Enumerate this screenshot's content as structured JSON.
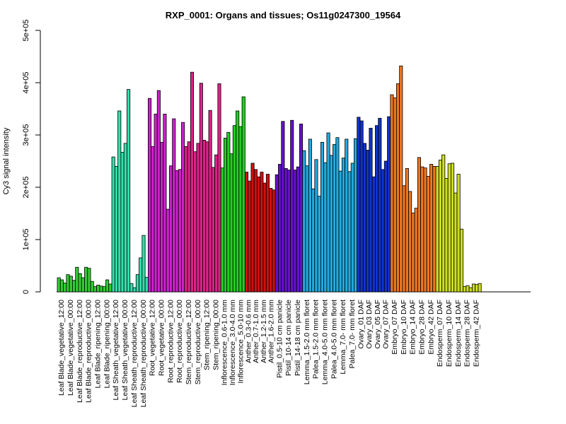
{
  "chart_data": {
    "type": "bar",
    "title": "RXP_0001: Organs and tissues; Os11g0247300_19564",
    "ylabel": "Cy3 signal intensity",
    "xlabel": "",
    "ylim": [
      0,
      500000
    ],
    "yticks": [
      0,
      100000,
      200000,
      300000,
      400000,
      500000
    ],
    "ytick_labels": [
      "0",
      "1e+05",
      "2e+05",
      "3e+05",
      "4e+05",
      "5e+05"
    ],
    "grid": false,
    "legend": "none",
    "groups": [
      {
        "labels": [
          "Leaf Blade_vegetative_12:00",
          "Leaf Blade_vegetative_00:00"
        ],
        "color": "#33cc33",
        "values": [
          27000,
          23000,
          17000,
          33000,
          30000,
          22000
        ]
      },
      {
        "labels": [
          "Leaf Blade_reproductive_12:00",
          "Leaf Blade_reproductive_00:00"
        ],
        "color": "#33cc33",
        "values": [
          47000,
          35000,
          27000,
          47000,
          45000,
          20000
        ]
      },
      {
        "labels": [
          "Leaf Blade_ripening_12:00",
          "Leaf Blade_ripening_00:00"
        ],
        "color": "#33cc33",
        "values": [
          10000,
          13000,
          11000,
          10000,
          23000,
          15000
        ]
      },
      {
        "labels": [
          "Leaf Sheath_vegetative_12:00",
          "Leaf Sheath_vegetative_00:00"
        ],
        "color": "#33ddaa",
        "values": [
          258000,
          240000,
          346000,
          267000,
          284000,
          387000
        ]
      },
      {
        "labels": [
          "Leaf Sheath_reproductive_12:00",
          "Leaf Sheath_reproductive_00:00"
        ],
        "color": "#33ddaa",
        "values": [
          16000,
          8000,
          33000,
          65000,
          108000,
          28000
        ]
      },
      {
        "labels": [
          "Root_vegetative_12:00",
          "Root_vegetative_00:00"
        ],
        "color": "#cc22cc",
        "values": [
          370000,
          278000,
          340000,
          385000,
          286000,
          340000
        ]
      },
      {
        "labels": [
          "Root_reproductive_12:00",
          "Root_reproductive_00:00"
        ],
        "color": "#cc22cc",
        "values": [
          158000,
          241000,
          331000,
          232000,
          234000,
          324000
        ]
      },
      {
        "labels": [
          "Stem_reproductive_12:00",
          "Stem_reproductive_00:00"
        ],
        "color": "#dd2288",
        "values": [
          278000,
          287000,
          420000,
          268000,
          284000,
          399000
        ]
      },
      {
        "labels": [
          "Stem_ripening_12:00",
          "Stem_ripening_00:00"
        ],
        "color": "#dd2288",
        "values": [
          290000,
          287000,
          347000,
          238000,
          262000,
          398000
        ]
      },
      {
        "labels": [
          "Inflorescence_0.6-1.0 mm",
          "Inflorescence_3.0-4.0 mm",
          "Inflorescence_5.0-10 mm"
        ],
        "color": "#22cc22",
        "values": [
          237000,
          294000,
          305000,
          264000,
          318000,
          346000,
          316000,
          373000
        ]
      },
      {
        "labels": [
          "Anther_0.3-0.6 mm",
          "Anther_0.7-1.0 mm",
          "Anther_1.2-1.5 mm",
          "Anther_1.6-2.0 mm"
        ],
        "color": "#cc1111",
        "values": [
          229000,
          212000,
          246000,
          234000,
          220000,
          229000,
          208000,
          225000,
          198000,
          195000
        ]
      },
      {
        "labels": [
          "Pistil_0.5-10 cm panicle",
          "Pistil_10-14 cm panicle",
          "Pistil_14-18 cm panicle"
        ],
        "color": "#6611cc",
        "values": [
          224000,
          244000,
          326000,
          236000,
          233000,
          328000,
          233000,
          239000,
          321000
        ]
      },
      {
        "labels": [
          "Lemma_1.5-2.0 mm floret",
          "Palea_1.5-2.0 mm floret",
          "Lemma_4.0-5.0 mm floret",
          "Palea_4.0-5.0 mm floret",
          "Lemma_7.0- mm floret",
          "Palea_7.0- mm floret"
        ],
        "color": "#22aadd",
        "values": [
          270000,
          241000,
          292000,
          197000,
          253000,
          183000,
          286000,
          247000,
          304000,
          261000,
          282000,
          295000,
          231000,
          256000,
          292000,
          230000,
          246000,
          293000
        ]
      },
      {
        "labels": [
          "Ovary_01 DAF",
          "Ovary_03 DAF",
          "Ovary_05 DAF",
          "Ovary_07 DAF"
        ],
        "color": "#1133cc",
        "values": [
          334000,
          327000,
          284000,
          271000,
          313000,
          220000,
          318000,
          332000,
          234000,
          250000,
          335000
        ]
      },
      {
        "labels": [
          "Embryo_07 DAF",
          "Embryo_10 DAF",
          "Embryo_14 DAF",
          "Embryo_28 DAF",
          "Embryo_42 DAF"
        ],
        "color": "#ee7722",
        "values": [
          377000,
          371000,
          398000,
          432000,
          203000,
          236000,
          192000,
          151000,
          160000,
          257000,
          239000,
          237000,
          221000,
          244000,
          240000
        ]
      },
      {
        "labels": [
          "Endosperm_07 DAF",
          "Endosperm_10 DAF",
          "Endosperm_14 DAF",
          "Endosperm_28 DAF",
          "Endosperm_42 DAF"
        ],
        "color": "#ccdd22",
        "values": [
          240000,
          252000,
          262000,
          217000,
          245000,
          246000,
          189000,
          225000,
          120000,
          10000,
          12000,
          8000,
          15000,
          14000,
          16000
        ]
      }
    ]
  }
}
